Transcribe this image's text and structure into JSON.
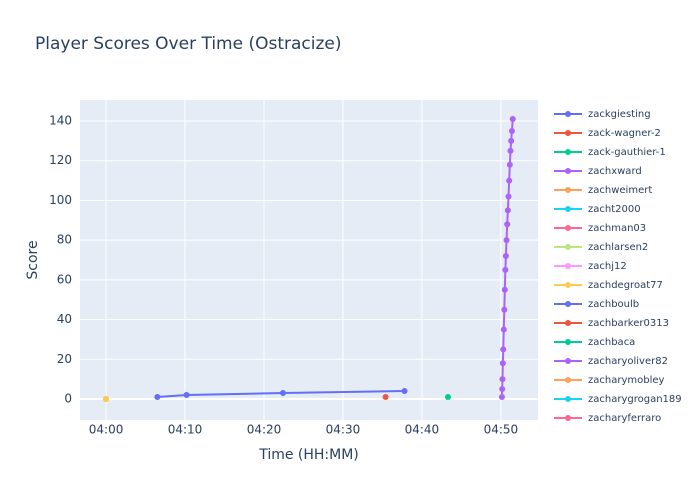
{
  "chart_data": {
    "type": "line",
    "title": "Player Scores Over Time (Ostracize)",
    "x_label": "Time (HH:MM)",
    "y_label": "Score",
    "xlim": [
      "03:56:42",
      "04:54:42"
    ],
    "xticks": [
      "04:00",
      "04:10",
      "04:20",
      "04:30",
      "04:40",
      "04:50"
    ],
    "ylim": [
      -10.6,
      150.6
    ],
    "yticks": [
      0,
      20,
      40,
      60,
      80,
      100,
      120,
      140
    ],
    "grid": true,
    "legend": "right",
    "series": [
      {
        "name": "zackgiesting",
        "color": "#636efa",
        "x": [
          "04:06:30",
          "04:10:12",
          "04:22:24",
          "04:37:48"
        ],
        "values": [
          1,
          2,
          3,
          4
        ]
      },
      {
        "name": "zack-wagner-2",
        "color": "#EF553B",
        "x": [
          "04:35:24"
        ],
        "values": [
          1
        ]
      },
      {
        "name": "zack-gauthier-1",
        "color": "#00cc96",
        "x": [
          "04:43:18"
        ],
        "values": [
          1
        ]
      },
      {
        "name": "zachxward",
        "color": "#ab63fa",
        "x": [
          "04:50:08",
          "04:50:10",
          "04:50:12",
          "04:50:15",
          "04:50:18",
          "04:50:22",
          "04:50:26",
          "04:50:30",
          "04:50:34",
          "04:50:38",
          "04:50:43",
          "04:50:48",
          "04:50:53",
          "04:50:58",
          "04:51:03",
          "04:51:08",
          "04:51:13",
          "04:51:18",
          "04:51:24",
          "04:51:30"
        ],
        "values": [
          1,
          5,
          10,
          18,
          25,
          35,
          45,
          55,
          65,
          72,
          80,
          88,
          95,
          102,
          110,
          118,
          125,
          130,
          135,
          141
        ]
      },
      {
        "name": "zachweimert",
        "color": "#FFA15A",
        "x": [
          "04:00:00"
        ],
        "values": [
          0
        ]
      },
      {
        "name": "zacht2000",
        "color": "#19d3f3",
        "x": [],
        "values": []
      },
      {
        "name": "zachman03",
        "color": "#FF6692",
        "x": [],
        "values": []
      },
      {
        "name": "zachlarsen2",
        "color": "#B6E880",
        "x": [],
        "values": []
      },
      {
        "name": "zachj12",
        "color": "#FF97FF",
        "x": [],
        "values": []
      },
      {
        "name": "zachdegroat77",
        "color": "#FECB52",
        "x": [
          "04:00:00"
        ],
        "values": [
          0
        ]
      },
      {
        "name": "zachboulb",
        "color": "#636efa",
        "x": [],
        "values": []
      },
      {
        "name": "zachbarker0313",
        "color": "#EF553B",
        "x": [],
        "values": []
      },
      {
        "name": "zachbaca",
        "color": "#00cc96",
        "x": [],
        "values": []
      },
      {
        "name": "zacharyoliver82",
        "color": "#ab63fa",
        "x": [],
        "values": []
      },
      {
        "name": "zacharymobley",
        "color": "#FFA15A",
        "x": [],
        "values": []
      },
      {
        "name": "zacharygrogan189",
        "color": "#19d3f3",
        "x": [],
        "values": []
      },
      {
        "name": "zacharyferraro",
        "color": "#FF6692",
        "x": [],
        "values": []
      }
    ]
  }
}
